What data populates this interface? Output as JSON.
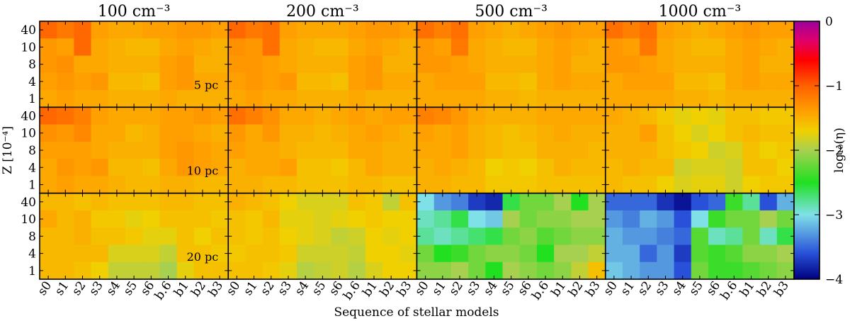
{
  "chart_data": {
    "type": "heatmap",
    "column_titles": [
      "100 cm⁻³",
      "200 cm⁻³",
      "500 cm⁻³",
      "1000 cm⁻³"
    ],
    "row_labels": [
      "5 pc",
      "10 pc",
      "20 pc"
    ],
    "x_categories": [
      "s0",
      "s1",
      "s2",
      "s3",
      "s4",
      "s5",
      "s6",
      "b.6",
      "b1",
      "b2",
      "b3"
    ],
    "y_categories": [
      "40",
      "10",
      "8",
      "4",
      "1"
    ],
    "xlabel": "Sequence of stellar models",
    "ylabel": "Z [10⁻⁴]",
    "colorbar": {
      "label": "log₁₀(η)",
      "range": [
        -4,
        0
      ],
      "ticks": [
        "−4",
        "−3",
        "−2",
        "−1",
        "0"
      ],
      "tick_values": [
        -4,
        -3,
        -2,
        -1,
        0
      ],
      "colormap": [
        [
          -4.0,
          "#000080"
        ],
        [
          -3.6,
          "#2850d8"
        ],
        [
          -3.0,
          "#80e0e8"
        ],
        [
          -2.5,
          "#20e020"
        ],
        [
          -2.0,
          "#a8d050"
        ],
        [
          -1.7,
          "#f0d000"
        ],
        [
          -1.4,
          "#ffa000"
        ],
        [
          -1.0,
          "#ff6000"
        ],
        [
          -0.6,
          "#ff0000"
        ],
        [
          -0.3,
          "#e0006a"
        ],
        [
          0.0,
          "#9e009e"
        ]
      ]
    },
    "panels": [
      [
        [
          [
            -1.05,
            -1.15,
            -1.05,
            -1.4,
            -1.45,
            -1.45,
            -1.4,
            -1.4,
            -1.35,
            -1.35,
            -1.4
          ],
          [
            -1.35,
            -1.4,
            -1.05,
            -1.45,
            -1.5,
            -1.55,
            -1.55,
            -1.45,
            -1.4,
            -1.45,
            -1.5
          ],
          [
            -1.35,
            -1.3,
            -1.45,
            -1.45,
            -1.5,
            -1.5,
            -1.5,
            -1.4,
            -1.35,
            -1.5,
            -1.5
          ],
          [
            -1.4,
            -1.35,
            -1.4,
            -1.35,
            -1.55,
            -1.55,
            -1.6,
            -1.4,
            -1.35,
            -1.45,
            -1.45
          ],
          [
            -1.45,
            -1.4,
            -1.45,
            -1.45,
            -1.5,
            -1.5,
            -1.5,
            -1.45,
            -1.5,
            -1.5,
            -1.5
          ]
        ],
        [
          [
            -1.05,
            -1.1,
            -1.2,
            -1.4,
            -1.45,
            -1.45,
            -1.45,
            -1.4,
            -1.4,
            -1.35,
            -1.4
          ],
          [
            -1.3,
            -1.35,
            -1.25,
            -1.45,
            -1.45,
            -1.55,
            -1.5,
            -1.4,
            -1.4,
            -1.45,
            -1.5
          ],
          [
            -1.4,
            -1.4,
            -1.4,
            -1.45,
            -1.5,
            -1.5,
            -1.5,
            -1.4,
            -1.35,
            -1.4,
            -1.45
          ],
          [
            -1.45,
            -1.35,
            -1.4,
            -1.35,
            -1.55,
            -1.55,
            -1.6,
            -1.45,
            -1.35,
            -1.4,
            -1.45
          ],
          [
            -1.45,
            -1.4,
            -1.45,
            -1.45,
            -1.5,
            -1.55,
            -1.55,
            -1.5,
            -1.5,
            -1.55,
            -1.55
          ]
        ],
        [
          [
            -1.55,
            -1.55,
            -1.6,
            -1.55,
            -1.6,
            -1.6,
            -1.6,
            -1.55,
            -1.55,
            -1.6,
            -1.6
          ],
          [
            -1.45,
            -1.55,
            -1.5,
            -1.65,
            -1.65,
            -1.75,
            -1.7,
            -1.6,
            -1.6,
            -1.6,
            -1.65
          ],
          [
            -1.55,
            -1.55,
            -1.5,
            -1.6,
            -1.6,
            -1.65,
            -1.75,
            -1.75,
            -1.6,
            -1.7,
            -1.6
          ],
          [
            -1.55,
            -1.55,
            -1.55,
            -1.55,
            -1.8,
            -1.8,
            -1.8,
            -1.9,
            -1.6,
            -1.6,
            -1.65
          ],
          [
            -1.55,
            -1.55,
            -1.6,
            -1.7,
            -1.9,
            -1.9,
            -1.9,
            -2.0,
            -1.75,
            -1.6,
            -1.6
          ]
        ]
      ],
      [
        [
          [
            -1.05,
            -1.15,
            -1.1,
            -1.4,
            -1.45,
            -1.45,
            -1.45,
            -1.4,
            -1.35,
            -1.35,
            -1.4
          ],
          [
            -1.3,
            -1.35,
            -1.1,
            -1.45,
            -1.5,
            -1.55,
            -1.55,
            -1.45,
            -1.4,
            -1.45,
            -1.5
          ],
          [
            -1.35,
            -1.35,
            -1.4,
            -1.45,
            -1.5,
            -1.5,
            -1.5,
            -1.4,
            -1.35,
            -1.5,
            -1.5
          ],
          [
            -1.4,
            -1.35,
            -1.4,
            -1.35,
            -1.55,
            -1.55,
            -1.6,
            -1.4,
            -1.35,
            -1.45,
            -1.45
          ],
          [
            -1.45,
            -1.4,
            -1.45,
            -1.45,
            -1.5,
            -1.5,
            -1.5,
            -1.45,
            -1.5,
            -1.5,
            -1.5
          ]
        ],
        [
          [
            -1.1,
            -1.2,
            -1.3,
            -1.45,
            -1.45,
            -1.5,
            -1.45,
            -1.4,
            -1.45,
            -1.4,
            -1.4
          ],
          [
            -1.35,
            -1.45,
            -1.35,
            -1.5,
            -1.5,
            -1.55,
            -1.5,
            -1.45,
            -1.4,
            -1.45,
            -1.5
          ],
          [
            -1.4,
            -1.45,
            -1.45,
            -1.5,
            -1.55,
            -1.55,
            -1.55,
            -1.45,
            -1.45,
            -1.5,
            -1.5
          ],
          [
            -1.5,
            -1.45,
            -1.45,
            -1.4,
            -1.6,
            -1.6,
            -1.65,
            -1.55,
            -1.45,
            -1.5,
            -1.5
          ],
          [
            -1.5,
            -1.5,
            -1.55,
            -1.55,
            -1.6,
            -1.6,
            -1.6,
            -1.55,
            -1.55,
            -1.6,
            -1.6
          ]
        ],
        [
          [
            -1.5,
            -1.55,
            -1.6,
            -1.7,
            -1.8,
            -1.8,
            -1.8,
            -1.6,
            -1.65,
            -1.9,
            -1.6
          ],
          [
            -1.6,
            -1.65,
            -1.55,
            -1.75,
            -1.75,
            -1.8,
            -1.75,
            -1.7,
            -1.65,
            -1.7,
            -1.7
          ],
          [
            -1.6,
            -1.65,
            -1.6,
            -1.7,
            -1.75,
            -1.8,
            -1.9,
            -1.85,
            -1.7,
            -1.75,
            -1.7
          ],
          [
            -1.65,
            -1.6,
            -1.6,
            -1.65,
            -1.85,
            -1.85,
            -1.85,
            -1.9,
            -1.7,
            -1.7,
            -1.75
          ],
          [
            -1.6,
            -1.6,
            -1.65,
            -1.75,
            -1.95,
            -1.9,
            -1.85,
            -1.95,
            -1.8,
            -1.7,
            -1.7
          ]
        ]
      ],
      [
        [
          [
            -1.1,
            -1.2,
            -1.1,
            -1.4,
            -1.45,
            -1.5,
            -1.45,
            -1.4,
            -1.35,
            -1.4,
            -1.4
          ],
          [
            -1.35,
            -1.4,
            -1.15,
            -1.45,
            -1.5,
            -1.55,
            -1.55,
            -1.45,
            -1.4,
            -1.45,
            -1.5
          ],
          [
            -1.35,
            -1.35,
            -1.4,
            -1.45,
            -1.5,
            -1.5,
            -1.5,
            -1.45,
            -1.4,
            -1.5,
            -1.5
          ],
          [
            -1.45,
            -1.4,
            -1.4,
            -1.4,
            -1.55,
            -1.55,
            -1.6,
            -1.45,
            -1.4,
            -1.45,
            -1.45
          ],
          [
            -1.45,
            -1.45,
            -1.45,
            -1.45,
            -1.5,
            -1.5,
            -1.55,
            -1.5,
            -1.5,
            -1.5,
            -1.5
          ]
        ],
        [
          [
            -1.2,
            -1.25,
            -1.35,
            -1.45,
            -1.5,
            -1.5,
            -1.5,
            -1.45,
            -1.45,
            -1.45,
            -1.45
          ],
          [
            -1.4,
            -1.45,
            -1.4,
            -1.5,
            -1.55,
            -1.6,
            -1.55,
            -1.5,
            -1.45,
            -1.5,
            -1.5
          ],
          [
            -1.45,
            -1.45,
            -1.4,
            -1.5,
            -1.55,
            -1.6,
            -1.6,
            -1.5,
            -1.5,
            -1.5,
            -1.55
          ],
          [
            -1.5,
            -1.45,
            -1.5,
            -1.55,
            -1.7,
            -1.65,
            -1.7,
            -1.6,
            -1.5,
            -1.55,
            -1.55
          ],
          [
            -1.5,
            -1.5,
            -1.55,
            -1.55,
            -1.65,
            -1.65,
            -1.65,
            -1.6,
            -1.6,
            -1.6,
            -1.6
          ]
        ],
        [
          [
            -3.0,
            -3.3,
            -3.4,
            -3.7,
            -3.8,
            -2.6,
            -2.2,
            -2.2,
            -2.0,
            -2.5,
            -2.0
          ],
          [
            -2.9,
            -2.8,
            -2.6,
            -3.0,
            -3.1,
            -2.0,
            -2.2,
            -2.1,
            -2.1,
            -2.0,
            -2.0
          ],
          [
            -2.8,
            -2.9,
            -2.8,
            -2.7,
            -2.6,
            -2.2,
            -2.1,
            -2.3,
            -2.2,
            -2.1,
            -2.1
          ],
          [
            -2.2,
            -2.5,
            -2.4,
            -2.2,
            -2.1,
            -2.1,
            -2.2,
            -2.5,
            -2.0,
            -2.0,
            -1.9
          ],
          [
            -2.1,
            -2.1,
            -2.0,
            -2.2,
            -2.5,
            -2.0,
            -2.1,
            -2.2,
            -2.1,
            -1.9,
            -1.6
          ]
        ]
      ],
      [
        [
          [
            -1.1,
            -1.2,
            -1.1,
            -1.4,
            -1.45,
            -1.5,
            -1.45,
            -1.4,
            -1.35,
            -1.4,
            -1.4
          ],
          [
            -1.35,
            -1.4,
            -1.15,
            -1.45,
            -1.5,
            -1.55,
            -1.55,
            -1.45,
            -1.4,
            -1.45,
            -1.5
          ],
          [
            -1.35,
            -1.35,
            -1.4,
            -1.45,
            -1.5,
            -1.5,
            -1.5,
            -1.45,
            -1.4,
            -1.5,
            -1.5
          ],
          [
            -1.45,
            -1.4,
            -1.4,
            -1.4,
            -1.55,
            -1.55,
            -1.6,
            -1.45,
            -1.4,
            -1.45,
            -1.45
          ],
          [
            -1.45,
            -1.45,
            -1.45,
            -1.45,
            -1.5,
            -1.5,
            -1.55,
            -1.5,
            -1.5,
            -1.5,
            -1.5
          ]
        ],
        [
          [
            -1.45,
            -1.5,
            -1.55,
            -1.65,
            -1.75,
            -1.7,
            -1.75,
            -1.6,
            -1.6,
            -1.65,
            -1.65
          ],
          [
            -1.5,
            -1.5,
            -1.4,
            -1.6,
            -1.7,
            -1.8,
            -1.7,
            -1.6,
            -1.55,
            -1.6,
            -1.6
          ],
          [
            -1.5,
            -1.5,
            -1.5,
            -1.6,
            -1.65,
            -1.7,
            -1.85,
            -1.8,
            -1.6,
            -1.7,
            -1.65
          ],
          [
            -1.55,
            -1.5,
            -1.55,
            -1.55,
            -1.85,
            -1.8,
            -1.8,
            -1.85,
            -1.6,
            -1.6,
            -1.7
          ],
          [
            -1.55,
            -1.6,
            -1.6,
            -1.7,
            -1.8,
            -1.75,
            -1.75,
            -1.85,
            -1.7,
            -1.65,
            -1.65
          ]
        ],
        [
          [
            -3.5,
            -3.5,
            -3.5,
            -3.75,
            -3.9,
            -3.6,
            -3.5,
            -2.4,
            -2.8,
            -3.6,
            -3.2
          ],
          [
            -3.3,
            -3.4,
            -3.2,
            -3.3,
            -3.6,
            -3.0,
            -2.4,
            -2.2,
            -2.2,
            -2.0,
            -2.2
          ],
          [
            -3.2,
            -3.3,
            -3.3,
            -3.4,
            -3.5,
            -2.3,
            -2.9,
            -2.8,
            -2.2,
            -2.9,
            -2.6
          ],
          [
            -3.2,
            -3.2,
            -3.5,
            -3.3,
            -3.7,
            -2.3,
            -2.4,
            -2.3,
            -2.1,
            -2.1,
            -2.0
          ],
          [
            -3.1,
            -3.2,
            -3.3,
            -3.3,
            -3.6,
            -2.2,
            -2.4,
            -2.4,
            -2.3,
            -2.2,
            -2.1
          ]
        ]
      ]
    ]
  }
}
